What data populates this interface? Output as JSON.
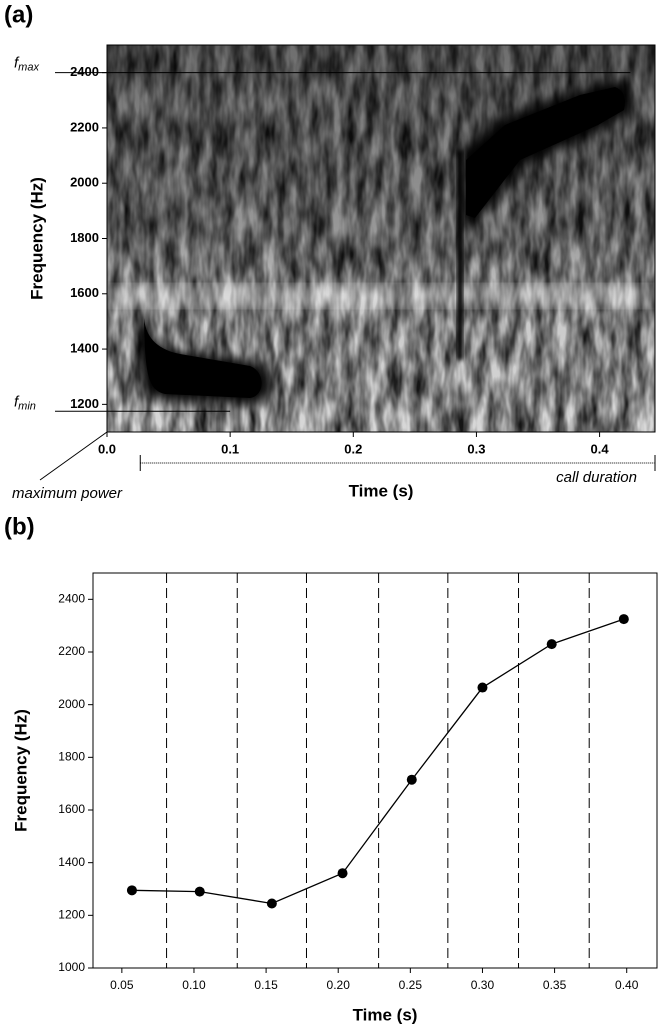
{
  "chart_data": [
    {
      "type": "spectrogram",
      "label": "(a)",
      "x_label": "Time (s)",
      "y_label": "Frequency (Hz)",
      "xlim": [
        0,
        0.445
      ],
      "ylim": [
        1100,
        2500
      ],
      "xticks": [
        {
          "value": 0,
          "label": "0.0"
        },
        0.1,
        0.2,
        0.3,
        0.4
      ],
      "yticks": [
        1200,
        1400,
        1600,
        1800,
        2000,
        2200,
        2400
      ],
      "annotations": [
        {
          "text": "f",
          "sub": "max",
          "y": 2400
        },
        {
          "text": "f",
          "sub": "min",
          "y": 1175
        }
      ],
      "maximum_power_label": "maximum power",
      "call_duration": {
        "label": "call duration",
        "x": [
          0.027,
          0.445
        ]
      }
    },
    {
      "type": "line",
      "label": "(b)",
      "x_label": "Time (s)",
      "y_label": "Frequency (Hz)",
      "x": [
        0.057,
        0.104,
        0.154,
        0.203,
        0.251,
        0.3,
        0.348,
        0.398
      ],
      "values": [
        1295,
        1290,
        1245,
        1360,
        1715,
        2065,
        2230,
        2325
      ],
      "color": "#000000",
      "xlim": [
        0.03,
        0.421
      ],
      "ylim": [
        1000,
        2500
      ],
      "xticks": [
        {
          "value": 0.05,
          "label": "0.05"
        },
        {
          "value": 0.1,
          "label": "0.10"
        },
        {
          "value": 0.15,
          "label": "0.15"
        },
        {
          "value": 0.2,
          "label": "0.20"
        },
        {
          "value": 0.25,
          "label": "0.25"
        },
        {
          "value": 0.3,
          "label": "0.30"
        },
        {
          "value": 0.35,
          "label": "0.35"
        },
        {
          "value": 0.4,
          "label": "0.40"
        }
      ],
      "yticks": [
        1000,
        1200,
        1400,
        1600,
        1800,
        2000,
        2200,
        2400
      ],
      "dashed_lines": [
        0.081,
        0.13,
        0.178,
        0.228,
        0.276,
        0.325,
        0.374
      ]
    }
  ]
}
